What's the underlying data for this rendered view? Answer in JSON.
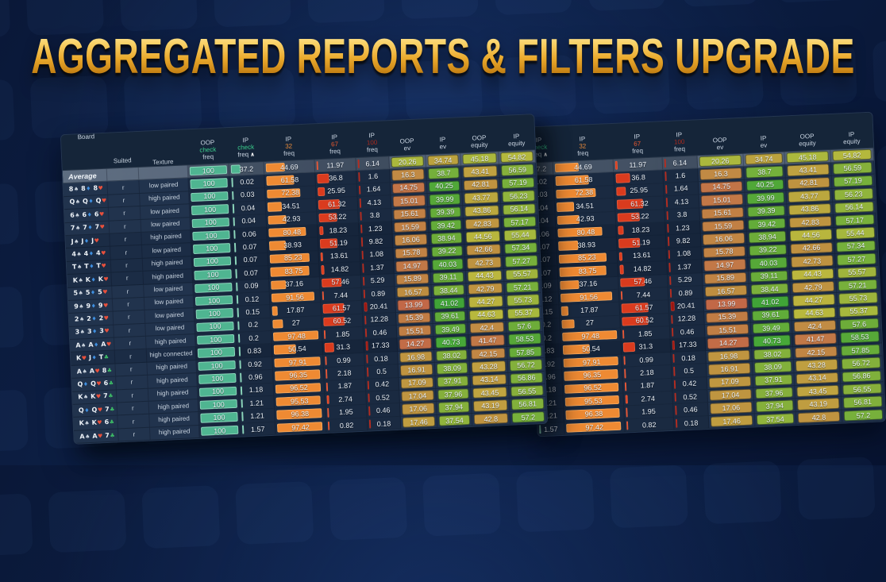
{
  "title": "AGGREGATED REPORTS & FILTERS UPGRADE",
  "colors": {
    "background": "#0a1838",
    "table_background": "#1b2c45",
    "header_background": "#152539",
    "gold_light": "#ffeeb0",
    "gold_dark": "#955c0b",
    "teal_bar": "#4fb591",
    "orange_bar": "#ee8a33",
    "red_bar": "#da3b1e",
    "dark_red_bar": "#9a1511",
    "check_green": "#3bd08d",
    "freq32_orange": "#f5913a",
    "freq67_red": "#ef5a2e",
    "freq100_dark_red": "#a82a1e",
    "average_band": "rgba(150,163,178,0.55)",
    "suit_spade": "#c9d2dd",
    "suit_heart": "#e8503c",
    "suit_diamond": "#3f8fe0",
    "suit_club": "#3dbb66"
  },
  "header": {
    "sort_caret": "∧",
    "columns": [
      {
        "id": "board",
        "lines": [
          [
            "Board",
            "plain"
          ]
        ]
      },
      {
        "id": "suited",
        "lines": [
          [
            "Suited",
            "plain"
          ]
        ]
      },
      {
        "id": "texture",
        "lines": [
          [
            "Texture",
            "plain"
          ]
        ]
      },
      {
        "id": "oop_check",
        "lines": [
          [
            "OOP",
            "plain"
          ],
          [
            "check",
            "check"
          ],
          [
            "freq",
            "plain"
          ]
        ]
      },
      {
        "id": "ip_check",
        "lines": [
          [
            "IP",
            "plain"
          ],
          [
            "check",
            "check"
          ],
          [
            "freq",
            "plain"
          ]
        ],
        "sort": true
      },
      {
        "id": "ip32",
        "lines": [
          [
            "IP",
            "plain"
          ],
          [
            "32",
            "f32"
          ],
          [
            "freq",
            "plain"
          ]
        ]
      },
      {
        "id": "ip67",
        "lines": [
          [
            "IP",
            "plain"
          ],
          [
            "67",
            "f67"
          ],
          [
            "freq",
            "plain"
          ]
        ]
      },
      {
        "id": "ip100",
        "lines": [
          [
            "IP",
            "plain"
          ],
          [
            "100",
            "f100"
          ],
          [
            "freq",
            "plain"
          ]
        ]
      },
      {
        "id": "oop_ev",
        "lines": [
          [
            "OOP",
            "plain"
          ],
          [
            "ev",
            "plain"
          ]
        ]
      },
      {
        "id": "ip_ev",
        "lines": [
          [
            "IP",
            "plain"
          ],
          [
            "ev",
            "plain"
          ]
        ]
      },
      {
        "id": "oop_eq",
        "lines": [
          [
            "OOP",
            "plain"
          ],
          [
            "equity",
            "plain"
          ]
        ]
      },
      {
        "id": "ip_eq",
        "lines": [
          [
            "IP",
            "plain"
          ],
          [
            "equity",
            "plain"
          ]
        ]
      }
    ],
    "right_table_columns": [
      "ip_check",
      "ip32",
      "ip67",
      "ip100",
      "oop_ev",
      "ip_ev",
      "oop_eq",
      "ip_eq"
    ]
  },
  "heatmap": {
    "oop_ev": [
      13,
      27
    ],
    "ip_ev": [
      31,
      41.5
    ],
    "oop_eq": [
      40,
      50
    ],
    "ip_eq": [
      50,
      60
    ]
  },
  "rows": [
    {
      "average": true,
      "label": "Average",
      "oop_check": "100",
      "ip_check": "37.2",
      "ip32": "44.69",
      "ip67": "11.97",
      "ip100": "6.14",
      "oop_ev": "20.26",
      "ip_ev": "34.74",
      "oop_eq": "45.18",
      "ip_eq": "54.82"
    },
    {
      "cards": [
        [
          "8",
          "s"
        ],
        [
          "8",
          "d"
        ],
        [
          "8",
          "h"
        ]
      ],
      "suited": "r",
      "texture": "low paired",
      "panel": true,
      "oop_check": "100",
      "ip_check": "0.02",
      "ip32": "61.58",
      "ip67": "36.8",
      "ip100": "1.6",
      "oop_ev": "16.3",
      "ip_ev": "38.7",
      "oop_eq": "43.41",
      "ip_eq": "56.59"
    },
    {
      "cards": [
        [
          "Q",
          "s"
        ],
        [
          "Q",
          "d"
        ],
        [
          "Q",
          "h"
        ]
      ],
      "suited": "r",
      "texture": "high paired",
      "panel": true,
      "oop_check": "100",
      "ip_check": "0.03",
      "ip32": "72.38",
      "ip67": "25.95",
      "ip100": "1.64",
      "oop_ev": "14.75",
      "ip_ev": "40.25",
      "oop_eq": "42.81",
      "ip_eq": "57.19"
    },
    {
      "cards": [
        [
          "6",
          "s"
        ],
        [
          "6",
          "d"
        ],
        [
          "6",
          "h"
        ]
      ],
      "suited": "r",
      "texture": "low paired",
      "panel": true,
      "oop_check": "100",
      "ip_check": "0.04",
      "ip32": "34.51",
      "ip67": "61.32",
      "ip100": "4.13",
      "oop_ev": "15.01",
      "ip_ev": "39.99",
      "oop_eq": "43.77",
      "ip_eq": "56.23"
    },
    {
      "cards": [
        [
          "7",
          "s"
        ],
        [
          "7",
          "d"
        ],
        [
          "7",
          "h"
        ]
      ],
      "suited": "r",
      "texture": "low paired",
      "panel": true,
      "oop_check": "100",
      "ip_check": "0.04",
      "ip32": "42.93",
      "ip67": "53.22",
      "ip100": "3.8",
      "oop_ev": "15.61",
      "ip_ev": "39.39",
      "oop_eq": "43.86",
      "ip_eq": "56.14"
    },
    {
      "cards": [
        [
          "J",
          "s"
        ],
        [
          "J",
          "d"
        ],
        [
          "J",
          "h"
        ]
      ],
      "suited": "r",
      "texture": "high paired",
      "panel": false,
      "oop_check": "100",
      "ip_check": "0.06",
      "ip32": "80.48",
      "ip67": "18.23",
      "ip100": "1.23",
      "oop_ev": "15.59",
      "ip_ev": "39.42",
      "oop_eq": "42.83",
      "ip_eq": "57.17"
    },
    {
      "cards": [
        [
          "4",
          "s"
        ],
        [
          "4",
          "d"
        ],
        [
          "4",
          "h"
        ]
      ],
      "suited": "r",
      "texture": "low paired",
      "panel": false,
      "oop_check": "100",
      "ip_check": "0.07",
      "ip32": "38.93",
      "ip67": "51.19",
      "ip100": "9.82",
      "oop_ev": "16.06",
      "ip_ev": "38.94",
      "oop_eq": "44.56",
      "ip_eq": "55.44"
    },
    {
      "cards": [
        [
          "T",
          "s"
        ],
        [
          "T",
          "d"
        ],
        [
          "T",
          "h"
        ]
      ],
      "suited": "r",
      "texture": "high paired",
      "panel": false,
      "oop_check": "100",
      "ip_check": "0.07",
      "ip32": "85.23",
      "ip67": "13.61",
      "ip100": "1.08",
      "oop_ev": "15.78",
      "ip_ev": "39.22",
      "oop_eq": "42.66",
      "ip_eq": "57.34"
    },
    {
      "cards": [
        [
          "K",
          "s"
        ],
        [
          "K",
          "d"
        ],
        [
          "K",
          "h"
        ]
      ],
      "suited": "r",
      "texture": "high paired",
      "panel": false,
      "oop_check": "100",
      "ip_check": "0.07",
      "ip32": "83.75",
      "ip67": "14.82",
      "ip100": "1.37",
      "oop_ev": "14.97",
      "ip_ev": "40.03",
      "oop_eq": "42.73",
      "ip_eq": "57.27"
    },
    {
      "cards": [
        [
          "5",
          "s"
        ],
        [
          "5",
          "d"
        ],
        [
          "5",
          "h"
        ]
      ],
      "suited": "r",
      "texture": "low paired",
      "panel": true,
      "oop_check": "100",
      "ip_check": "0.09",
      "ip32": "37.16",
      "ip67": "57.46",
      "ip100": "5.29",
      "oop_ev": "15.89",
      "ip_ev": "39.11",
      "oop_eq": "44.43",
      "ip_eq": "55.57"
    },
    {
      "cards": [
        [
          "9",
          "s"
        ],
        [
          "9",
          "d"
        ],
        [
          "9",
          "h"
        ]
      ],
      "suited": "r",
      "texture": "low paired",
      "panel": true,
      "oop_check": "100",
      "ip_check": "0.12",
      "ip32": "91.56",
      "ip67": "7.44",
      "ip100": "0.89",
      "oop_ev": "16.57",
      "ip_ev": "38.44",
      "oop_eq": "42.79",
      "ip_eq": "57.21"
    },
    {
      "cards": [
        [
          "2",
          "s"
        ],
        [
          "2",
          "d"
        ],
        [
          "2",
          "h"
        ]
      ],
      "suited": "r",
      "texture": "low paired",
      "panel": true,
      "oop_check": "100",
      "ip_check": "0.15",
      "ip32": "17.87",
      "ip67": "61.57",
      "ip100": "20.41",
      "oop_ev": "13.99",
      "ip_ev": "41.02",
      "oop_eq": "44.27",
      "ip_eq": "55.73"
    },
    {
      "cards": [
        [
          "3",
          "s"
        ],
        [
          "3",
          "d"
        ],
        [
          "3",
          "h"
        ]
      ],
      "suited": "r",
      "texture": "low paired",
      "panel": true,
      "oop_check": "100",
      "ip_check": "0.2",
      "ip32": "27",
      "ip67": "60.52",
      "ip100": "12.28",
      "oop_ev": "15.39",
      "ip_ev": "39.61",
      "oop_eq": "44.63",
      "ip_eq": "55.37"
    },
    {
      "cards": [
        [
          "A",
          "s"
        ],
        [
          "A",
          "d"
        ],
        [
          "A",
          "h"
        ]
      ],
      "suited": "r",
      "texture": "high paired",
      "panel": true,
      "oop_check": "100",
      "ip_check": "0.2",
      "ip32": "97.48",
      "ip67": "1.85",
      "ip100": "0.46",
      "oop_ev": "15.51",
      "ip_ev": "39.49",
      "oop_eq": "42.4",
      "ip_eq": "57.6"
    },
    {
      "cards": [
        [
          "K",
          "h"
        ],
        [
          "J",
          "d"
        ],
        [
          "T",
          "c"
        ]
      ],
      "suited": "r",
      "texture": "high connected",
      "panel": false,
      "oop_check": "100",
      "ip_check": "0.83",
      "ip32": "50.54",
      "ip67": "31.3",
      "ip100": "17.33",
      "oop_ev": "14.27",
      "ip_ev": "40.73",
      "oop_eq": "41.47",
      "ip_eq": "58.53"
    },
    {
      "cards": [
        [
          "A",
          "s"
        ],
        [
          "A",
          "h"
        ],
        [
          "8",
          "c"
        ]
      ],
      "suited": "r",
      "texture": "high paired",
      "panel": true,
      "oop_check": "100",
      "ip_check": "0.92",
      "ip32": "97.91",
      "ip67": "0.99",
      "ip100": "0.18",
      "oop_ev": "16.98",
      "ip_ev": "38.02",
      "oop_eq": "42.15",
      "ip_eq": "57.85"
    },
    {
      "cards": [
        [
          "Q",
          "d"
        ],
        [
          "Q",
          "h"
        ],
        [
          "6",
          "c"
        ]
      ],
      "suited": "r",
      "texture": "high paired",
      "panel": true,
      "oop_check": "100",
      "ip_check": "0.96",
      "ip32": "96.35",
      "ip67": "2.18",
      "ip100": "0.5",
      "oop_ev": "16.91",
      "ip_ev": "38.09",
      "oop_eq": "43.28",
      "ip_eq": "56.72"
    },
    {
      "cards": [
        [
          "K",
          "s"
        ],
        [
          "K",
          "h"
        ],
        [
          "7",
          "c"
        ]
      ],
      "suited": "r",
      "texture": "high paired",
      "panel": true,
      "oop_check": "100",
      "ip_check": "1.18",
      "ip32": "96.52",
      "ip67": "1.87",
      "ip100": "0.42",
      "oop_ev": "17.09",
      "ip_ev": "37.91",
      "oop_eq": "43.14",
      "ip_eq": "56.86"
    },
    {
      "cards": [
        [
          "Q",
          "d"
        ],
        [
          "Q",
          "h"
        ],
        [
          "7",
          "c"
        ]
      ],
      "suited": "r",
      "texture": "high paired",
      "panel": true,
      "oop_check": "100",
      "ip_check": "1.21",
      "ip32": "95.53",
      "ip67": "2.74",
      "ip100": "0.52",
      "oop_ev": "17.04",
      "ip_ev": "37.96",
      "oop_eq": "43.45",
      "ip_eq": "56.55"
    },
    {
      "cards": [
        [
          "K",
          "s"
        ],
        [
          "K",
          "h"
        ],
        [
          "6",
          "c"
        ]
      ],
      "suited": "r",
      "texture": "high paired",
      "panel": true,
      "oop_check": "100",
      "ip_check": "1.21",
      "ip32": "96.38",
      "ip67": "1.95",
      "ip100": "0.46",
      "oop_ev": "17.06",
      "ip_ev": "37.94",
      "oop_eq": "43.19",
      "ip_eq": "56.81"
    },
    {
      "cards": [
        [
          "A",
          "s"
        ],
        [
          "A",
          "h"
        ],
        [
          "7",
          "c"
        ]
      ],
      "suited": "r",
      "texture": "high paired",
      "panel": true,
      "oop_check": "100",
      "ip_check": "1.57",
      "ip32": "97.42",
      "ip67": "0.82",
      "ip100": "0.18",
      "oop_ev": "17.46",
      "ip_ev": "37.54",
      "oop_eq": "42.8",
      "ip_eq": "57.2"
    }
  ]
}
